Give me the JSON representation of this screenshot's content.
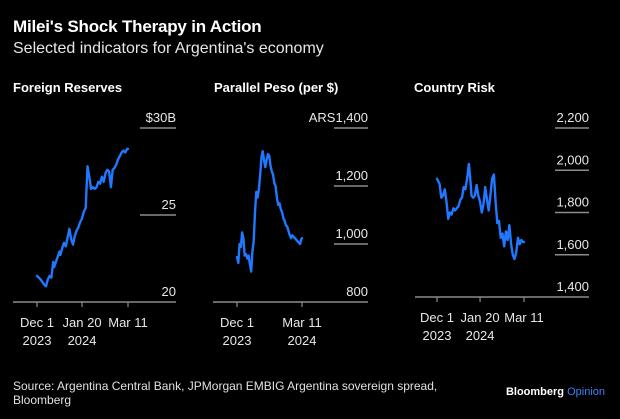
{
  "header": {
    "title": "Milei's Shock Therapy in Action",
    "subtitle": "Selected indicators for Argentina's economy"
  },
  "footer": {
    "source": "Source: Argentina Central Bank, JPMorgan EMBIG Argentina sovereign spread, Bloomberg",
    "brand": "Bloomberg",
    "brand_suffix": "Opinion"
  },
  "colors": {
    "line": "#1f78ff",
    "axis": "#8c8c8c",
    "background": "#000000",
    "text": "#ffffff"
  },
  "chart_data": [
    {
      "type": "line",
      "title": "Foreign Reserves",
      "unit_prefix": "$",
      "unit_suffix": "B",
      "ylim": [
        20,
        30
      ],
      "yticks": [
        20,
        25,
        30
      ],
      "ytick_labels": [
        "20",
        "25",
        "$30B"
      ],
      "xlim": [
        -8,
        135
      ],
      "xticks": [
        0,
        50,
        101
      ],
      "xtick_labels": [
        [
          "Dec 1",
          "2023"
        ],
        [
          "Jan 20",
          "2024"
        ],
        [
          "Mar 11",
          ""
        ]
      ],
      "x": [
        0,
        4,
        8,
        10,
        12,
        14,
        16,
        18,
        19,
        21,
        23,
        25,
        26,
        28,
        30,
        32,
        34,
        36,
        38,
        40,
        42,
        44,
        46,
        48,
        50,
        52,
        54,
        56,
        58,
        60,
        62,
        64,
        66,
        68,
        70,
        72,
        74,
        76,
        78,
        80,
        82,
        84,
        86,
        88,
        90,
        92,
        94,
        96,
        98,
        100,
        101
      ],
      "values": [
        21.5,
        21.3,
        21.0,
        20.9,
        21.3,
        21.5,
        21.4,
        22.3,
        22.0,
        22.3,
        22.6,
        22.9,
        22.7,
        23.1,
        23.4,
        23.2,
        23.7,
        24.2,
        23.6,
        23.3,
        23.8,
        24.1,
        24.3,
        24.6,
        24.8,
        25.2,
        25.4,
        27.8,
        27.2,
        26.5,
        26.6,
        26.5,
        26.6,
        26.9,
        26.8,
        27.2,
        26.9,
        27.4,
        27.6,
        27.5,
        26.6,
        27.6,
        27.7,
        27.9,
        28.2,
        28.4,
        28.6,
        28.7,
        28.6,
        28.8,
        28.8
      ]
    },
    {
      "type": "line",
      "title": "Parallel Peso (per $)",
      "unit_prefix": "ARS",
      "ylim": [
        800,
        1400
      ],
      "yticks": [
        800,
        1000,
        1200,
        1400
      ],
      "ytick_labels": [
        "800",
        "1,000",
        "1,200",
        "ARS1,400"
      ],
      "xlim": [
        -24,
        135
      ],
      "xticks": [
        0,
        101
      ],
      "xtick_labels": [
        [
          "Dec 1",
          "2023"
        ],
        [
          "Mar 11",
          "2024"
        ]
      ],
      "x": [
        0,
        2,
        4,
        6,
        8,
        10,
        12,
        14,
        16,
        18,
        20,
        22,
        24,
        26,
        28,
        30,
        32,
        34,
        36,
        38,
        40,
        42,
        44,
        46,
        48,
        50,
        52,
        54,
        56,
        58,
        60,
        62,
        64,
        66,
        68,
        70,
        72,
        74,
        76,
        78,
        80,
        82,
        84,
        86,
        88,
        90,
        92,
        94,
        96,
        98,
        100,
        101
      ],
      "values": [
        955,
        935,
        1000,
        990,
        1040,
        1020,
        960,
        965,
        950,
        960,
        930,
        905,
        975,
        1010,
        1110,
        1180,
        1160,
        1190,
        1240,
        1300,
        1320,
        1290,
        1265,
        1290,
        1310,
        1305,
        1270,
        1250,
        1240,
        1210,
        1200,
        1160,
        1135,
        1140,
        1120,
        1110,
        1090,
        1080,
        1065,
        1060,
        1045,
        1030,
        1020,
        1030,
        1025,
        1020,
        1015,
        1010,
        1005,
        1000,
        1018,
        1020
      ]
    },
    {
      "type": "line",
      "title": "Country Risk",
      "ylim": [
        1400,
        2200
      ],
      "yticks": [
        1400,
        1600,
        1800,
        2000,
        2200
      ],
      "ytick_labels": [
        "1,400",
        "1,600",
        "1,800",
        "2,000",
        "2,200"
      ],
      "xlim": [
        -10,
        135
      ],
      "xticks": [
        0,
        50,
        101
      ],
      "xtick_labels": [
        [
          "Dec 1",
          "2023"
        ],
        [
          "Jan 20",
          "2024"
        ],
        [
          "Mar 11",
          ""
        ]
      ],
      "x": [
        0,
        3,
        5,
        7,
        9,
        11,
        13,
        15,
        17,
        19,
        21,
        23,
        25,
        27,
        29,
        31,
        33,
        35,
        37,
        39,
        40,
        42,
        44,
        46,
        48,
        50,
        52,
        54,
        56,
        58,
        60,
        62,
        64,
        66,
        68,
        70,
        72,
        74,
        76,
        78,
        80,
        82,
        84,
        86,
        88,
        90,
        92,
        94,
        96,
        98,
        100,
        101
      ],
      "values": [
        1960,
        1935,
        1870,
        1880,
        1910,
        1850,
        1770,
        1800,
        1790,
        1820,
        1810,
        1820,
        1830,
        1860,
        1870,
        1920,
        1910,
        1960,
        2030,
        1940,
        1880,
        1870,
        1880,
        1930,
        1880,
        1850,
        1800,
        1840,
        1920,
        1860,
        1810,
        1880,
        1960,
        1980,
        1850,
        1750,
        1760,
        1680,
        1700,
        1640,
        1710,
        1670,
        1740,
        1650,
        1600,
        1580,
        1610,
        1680,
        1650,
        1670,
        1660,
        1660
      ]
    }
  ]
}
